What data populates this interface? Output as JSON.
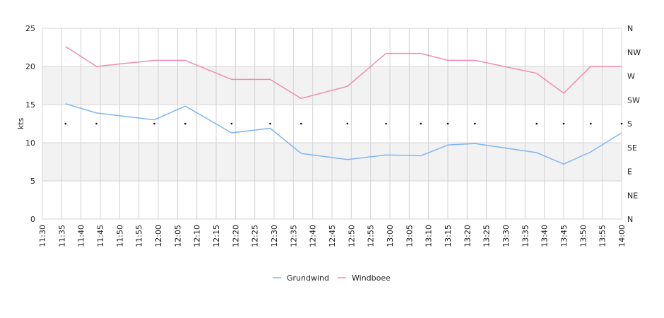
{
  "chart_data": {
    "type": "line",
    "ylabel": "kts",
    "ylim": [
      0,
      25
    ],
    "y_ticks": [
      0,
      5,
      10,
      15,
      20,
      25
    ],
    "x_range": [
      "11:30",
      "14:00"
    ],
    "x_ticks": [
      "11:30",
      "11:35",
      "11:40",
      "11:45",
      "11:50",
      "11:55",
      "12:00",
      "12:05",
      "12:10",
      "12:15",
      "12:20",
      "12:25",
      "12:30",
      "12:35",
      "12:40",
      "12:45",
      "12:50",
      "12:55",
      "13:00",
      "13:05",
      "13:10",
      "13:15",
      "13:20",
      "13:25",
      "13:30",
      "13:35",
      "13:40",
      "13:45",
      "13:50",
      "13:55",
      "14:00"
    ],
    "y2_ticks": [
      "N",
      "NE",
      "E",
      "SE",
      "S",
      "SW",
      "W",
      "NW",
      "N"
    ],
    "y2_range_degrees": [
      0,
      360
    ],
    "grid": true,
    "shaded_bands": [
      [
        5,
        10
      ],
      [
        15,
        20
      ]
    ],
    "legend_position": "bottom",
    "series": [
      {
        "name": "Grundwind",
        "color": "#7eb6f0",
        "x": [
          "11:36",
          "11:44",
          "11:59",
          "12:07",
          "12:19",
          "12:29",
          "12:37",
          "12:49",
          "12:59",
          "13:08",
          "13:15",
          "13:22",
          "13:38",
          "13:45",
          "13:52",
          "14:00"
        ],
        "values": [
          15.1,
          13.9,
          13.0,
          14.8,
          11.3,
          11.9,
          8.6,
          7.8,
          8.4,
          8.3,
          9.7,
          9.9,
          8.7,
          7.2,
          8.8,
          11.3
        ]
      },
      {
        "name": "Windboee",
        "color": "#f08cb4",
        "x": [
          "11:36",
          "11:44",
          "11:59",
          "12:07",
          "12:19",
          "12:29",
          "12:37",
          "12:49",
          "12:59",
          "13:08",
          "13:15",
          "13:22",
          "13:38",
          "13:45",
          "13:52",
          "14:00"
        ],
        "values": [
          22.6,
          20.0,
          20.8,
          20.8,
          18.3,
          18.3,
          15.8,
          17.4,
          21.7,
          21.7,
          20.8,
          20.8,
          19.1,
          16.5,
          20.0,
          20.0
        ]
      }
    ],
    "direction_markers": {
      "x": [
        "11:36",
        "11:44",
        "11:59",
        "12:07",
        "12:19",
        "12:29",
        "12:37",
        "12:49",
        "12:59",
        "13:08",
        "13:15",
        "13:22",
        "13:38",
        "13:45",
        "13:52",
        "14:00"
      ],
      "degrees": [
        180,
        180,
        180,
        180,
        180,
        180,
        180,
        180,
        180,
        180,
        180,
        180,
        180,
        180,
        180,
        180
      ]
    }
  }
}
